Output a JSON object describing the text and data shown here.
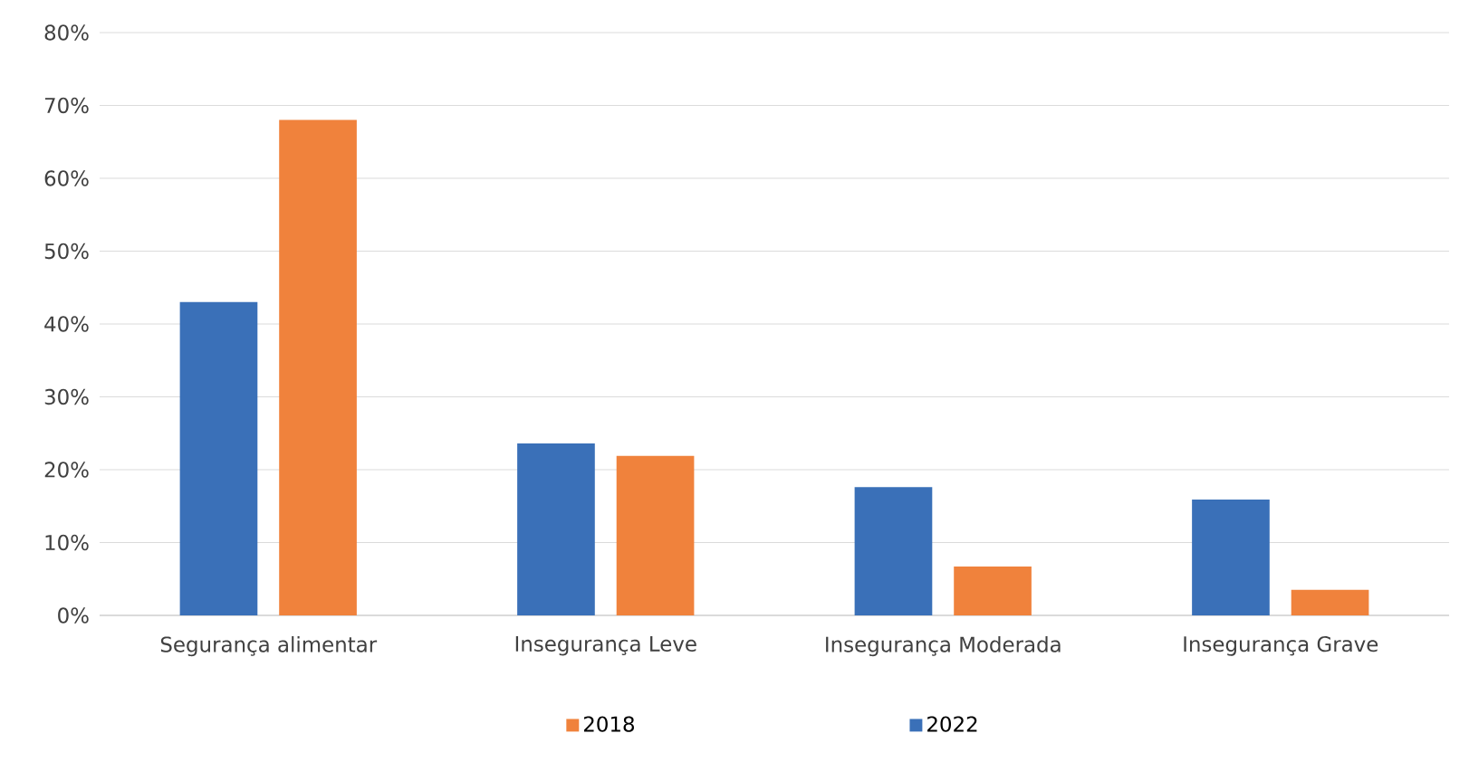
{
  "chart_data": {
    "type": "bar",
    "categories": [
      "Segurança alimentar",
      "Insegurança Leve",
      "Insegurança Moderada",
      "Insegurança Grave"
    ],
    "series": [
      {
        "name": "2022",
        "color": "#3a70b8",
        "values": [
          43,
          23.6,
          17.6,
          15.9
        ]
      },
      {
        "name": "2018",
        "color": "#f0823c",
        "values": [
          68,
          21.9,
          6.7,
          3.5
        ]
      }
    ],
    "ylim": [
      0,
      80
    ],
    "yticks": [
      {
        "value": 0,
        "label": "0%"
      },
      {
        "value": 10,
        "label": "10%"
      },
      {
        "value": 20,
        "label": "20%"
      },
      {
        "value": 30,
        "label": "30%"
      },
      {
        "value": 40,
        "label": "40%"
      },
      {
        "value": 50,
        "label": "50%"
      },
      {
        "value": 60,
        "label": "60%"
      },
      {
        "value": 70,
        "label": "70%"
      },
      {
        "value": 80,
        "label": "80%"
      }
    ],
    "grid": "y",
    "legend": "bottom"
  }
}
